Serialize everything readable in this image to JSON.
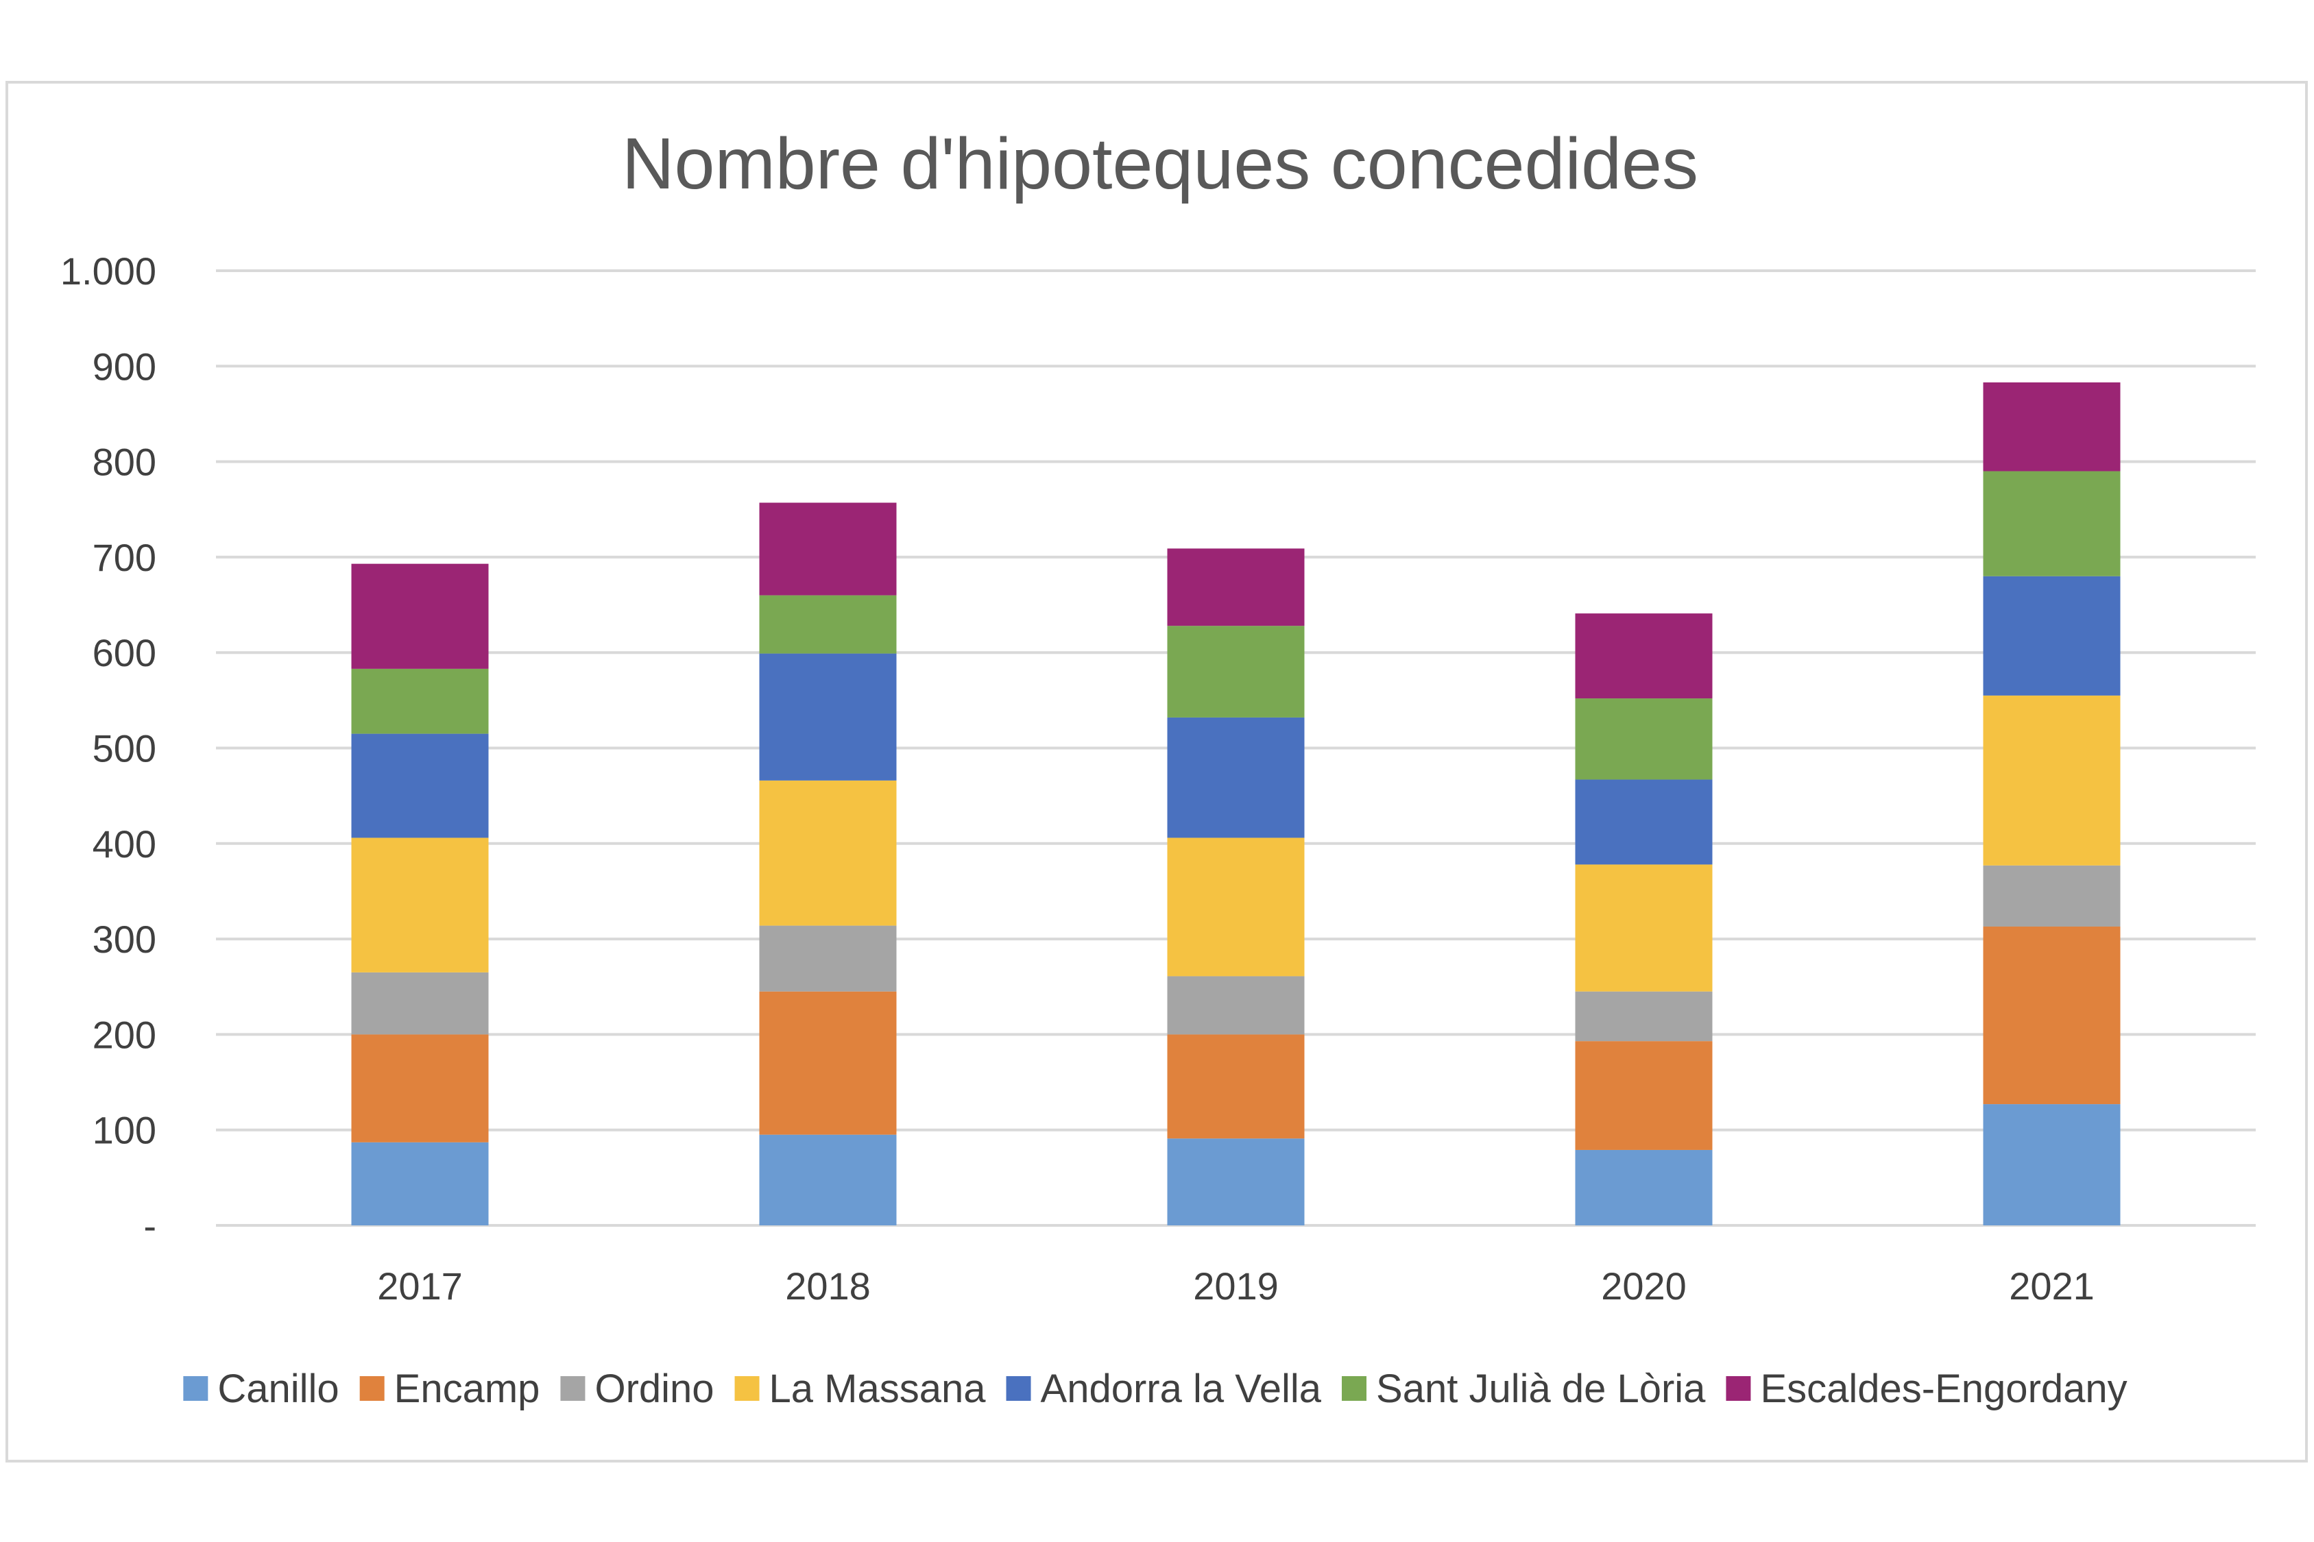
{
  "chart_data": {
    "type": "bar",
    "stacked": true,
    "title": "Nombre d'hipoteques concedides",
    "xlabel": "",
    "ylabel": "",
    "categories": [
      "2017",
      "2018",
      "2019",
      "2020",
      "2021"
    ],
    "ylim": [
      0,
      1000
    ],
    "yticks": [
      0,
      100,
      200,
      300,
      400,
      500,
      600,
      700,
      800,
      900,
      1000
    ],
    "ytick_labels": [
      "-",
      "100",
      "200",
      "300",
      "400",
      "500",
      "600",
      "700",
      "800",
      "900",
      "1.000"
    ],
    "grid": true,
    "legend_position": "bottom",
    "series": [
      {
        "name": "Canillo",
        "color": "#6b9bd2",
        "values": [
          87,
          95,
          91,
          79,
          127
        ]
      },
      {
        "name": "Encamp",
        "color": "#e0823d",
        "values": [
          113,
          150,
          109,
          114,
          186
        ]
      },
      {
        "name": "Ordino",
        "color": "#a5a5a5",
        "values": [
          65,
          69,
          61,
          52,
          64
        ]
      },
      {
        "name": "La Massana",
        "color": "#f5c242",
        "values": [
          141,
          152,
          145,
          133,
          178
        ]
      },
      {
        "name": "Andorra la Vella",
        "color": "#4a71bf",
        "values": [
          109,
          133,
          126,
          89,
          125
        ]
      },
      {
        "name": "Sant Julià de Lòria",
        "color": "#7aa852",
        "values": [
          68,
          61,
          96,
          85,
          110
        ]
      },
      {
        "name": "Escaldes-Engordany",
        "color": "#9b2574",
        "values": [
          110,
          97,
          81,
          89,
          93
        ]
      }
    ]
  }
}
